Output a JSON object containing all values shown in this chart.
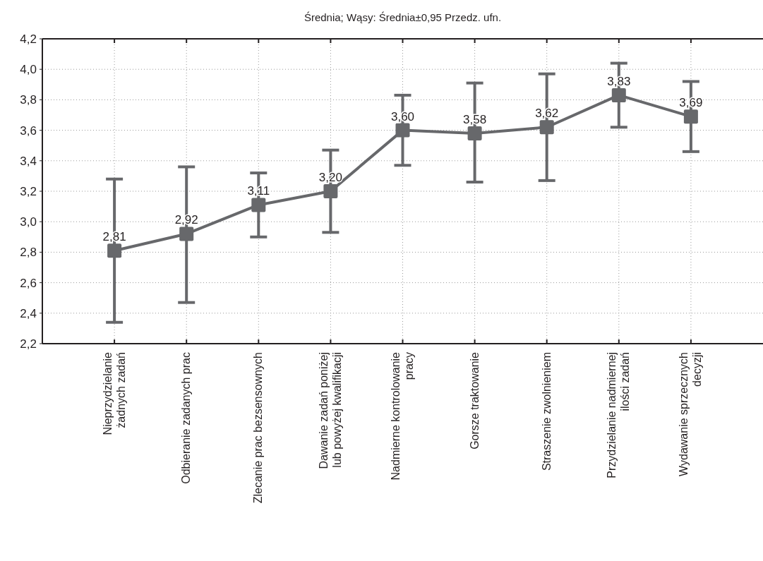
{
  "chart_data": {
    "type": "line",
    "title": "Średnia; Wąsy: Średnia±0,95 Przedz. ufn.",
    "categories": [
      "Nieprzydzielanie\nżadnych zadań",
      "Odbieranie zadanych prac",
      "Zlecanie prac bezsensownych",
      "Dawanie zadań poniżej\nlub powyżej kwalifikacji",
      "Nadmierne kontrolowanie\npracy",
      "Gorsze traktowanie",
      "Straszenie zwolnieniem",
      "Przydzielanie nadmiernej\nilości zadań",
      "Wydawanie sprzecznych\ndecyzji"
    ],
    "series": [
      {
        "color": "#67686b",
        "values": [
          2.81,
          2.92,
          3.11,
          3.2,
          3.6,
          3.58,
          3.62,
          3.83,
          3.69
        ],
        "value_labels": [
          "2,81",
          "2,92",
          "3,11",
          "3,20",
          "3,60",
          "3,58",
          "3,62",
          "3,83",
          "3,69"
        ],
        "errors": [
          [
            2.34,
            3.28
          ],
          [
            2.47,
            3.36
          ],
          [
            2.9,
            3.32
          ],
          [
            2.93,
            3.47
          ],
          [
            3.37,
            3.83
          ],
          [
            3.26,
            3.91
          ],
          [
            3.27,
            3.97
          ],
          [
            3.62,
            4.04
          ],
          [
            3.46,
            3.92
          ]
        ]
      }
    ],
    "ylim": [
      2.2,
      4.2
    ],
    "yticks": [
      {
        "value": 2.2,
        "label": "2,2"
      },
      {
        "value": 2.4,
        "label": "2,4"
      },
      {
        "value": 2.6,
        "label": "2,6"
      },
      {
        "value": 2.8,
        "label": "2,8"
      },
      {
        "value": 3.0,
        "label": "3,0"
      },
      {
        "value": 3.2,
        "label": "3,2"
      },
      {
        "value": 3.4,
        "label": "3,4"
      },
      {
        "value": 3.6,
        "label": "3,6"
      },
      {
        "value": 3.8,
        "label": "3,8"
      },
      {
        "value": 4.0,
        "label": "4,0"
      },
      {
        "value": 4.2,
        "label": "4,2"
      }
    ],
    "grid": true,
    "marker": "square",
    "line_style": "solid"
  }
}
